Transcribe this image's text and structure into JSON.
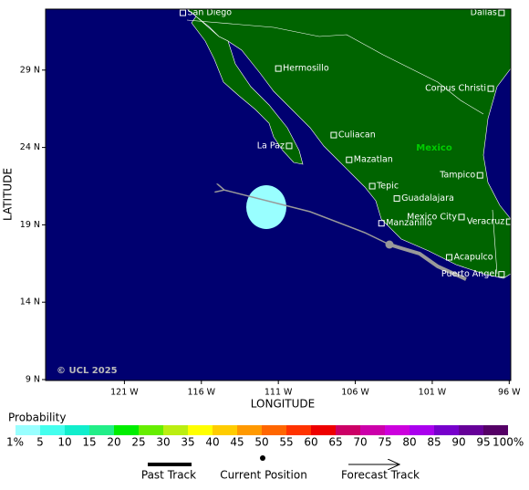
{
  "map": {
    "title_y": "LATITUDE",
    "title_x": "LONGITUDE",
    "copyright": "© UCL 2025",
    "country_label": "Mexico",
    "xlim": [
      -126.12,
      -95.9
    ],
    "ylim": [
      8.94,
      32.94
    ],
    "xticks": [
      {
        "value": -121,
        "label": "121 W"
      },
      {
        "value": -116,
        "label": "116 W"
      },
      {
        "value": -111,
        "label": "111 W"
      },
      {
        "value": -106,
        "label": "106 W"
      },
      {
        "value": -101,
        "label": "101 W"
      },
      {
        "value": -96,
        "label": "96 W"
      }
    ],
    "yticks": [
      {
        "value": 29,
        "label": "29 N"
      },
      {
        "value": 24,
        "label": "24 N"
      },
      {
        "value": 19,
        "label": "19 N"
      },
      {
        "value": 14,
        "label": "14 N"
      },
      {
        "value": 9,
        "label": "9 N"
      }
    ],
    "cities": [
      {
        "name": "San Diego",
        "lon": -117.2,
        "lat": 32.7
      },
      {
        "name": "Dallas",
        "lon": -96.5,
        "lat": 32.7
      },
      {
        "name": "Hermosillo",
        "lon": -111.0,
        "lat": 29.1
      },
      {
        "name": "Corpus Christi",
        "lon": -97.2,
        "lat": 27.8
      },
      {
        "name": "La Paz",
        "lon": -110.3,
        "lat": 24.1
      },
      {
        "name": "Culiacan",
        "lon": -107.4,
        "lat": 24.8
      },
      {
        "name": "Mazatlan",
        "lon": -106.4,
        "lat": 23.2
      },
      {
        "name": "Tampico",
        "lon": -97.9,
        "lat": 22.2
      },
      {
        "name": "Tepic",
        "lon": -104.9,
        "lat": 21.5
      },
      {
        "name": "Guadalajara",
        "lon": -103.3,
        "lat": 20.7
      },
      {
        "name": "Mexico City",
        "lon": -99.1,
        "lat": 19.5
      },
      {
        "name": "Veracruz",
        "lon": -96.0,
        "lat": 19.2
      },
      {
        "name": "Manzanillo",
        "lon": -104.3,
        "lat": 19.1
      },
      {
        "name": "Acapulco",
        "lon": -99.9,
        "lat": 16.9
      },
      {
        "name": "Puerto Angel",
        "lon": -96.5,
        "lat": 15.8
      }
    ]
  },
  "legend": {
    "title": "Probability",
    "labels": [
      "1%",
      "5",
      "10",
      "15",
      "20",
      "25",
      "30",
      "35",
      "40",
      "45",
      "50",
      "55",
      "60",
      "65",
      "70",
      "75",
      "80",
      "85",
      "90",
      "95",
      "100%"
    ],
    "colors": [
      "#99ffff",
      "#44ffee",
      "#11eecc",
      "#22ee88",
      "#00ee00",
      "#66ee00",
      "#bbee11",
      "#ffff00",
      "#ffcc00",
      "#ff9900",
      "#ff6600",
      "#ff3300",
      "#ee0000",
      "#cc0066",
      "#cc00aa",
      "#cc00dd",
      "#aa00ee",
      "#7700cc",
      "#660099",
      "#550066"
    ],
    "past_track": "Past Track",
    "current_position": "Current Position",
    "forecast_track": "Forecast Track"
  }
}
